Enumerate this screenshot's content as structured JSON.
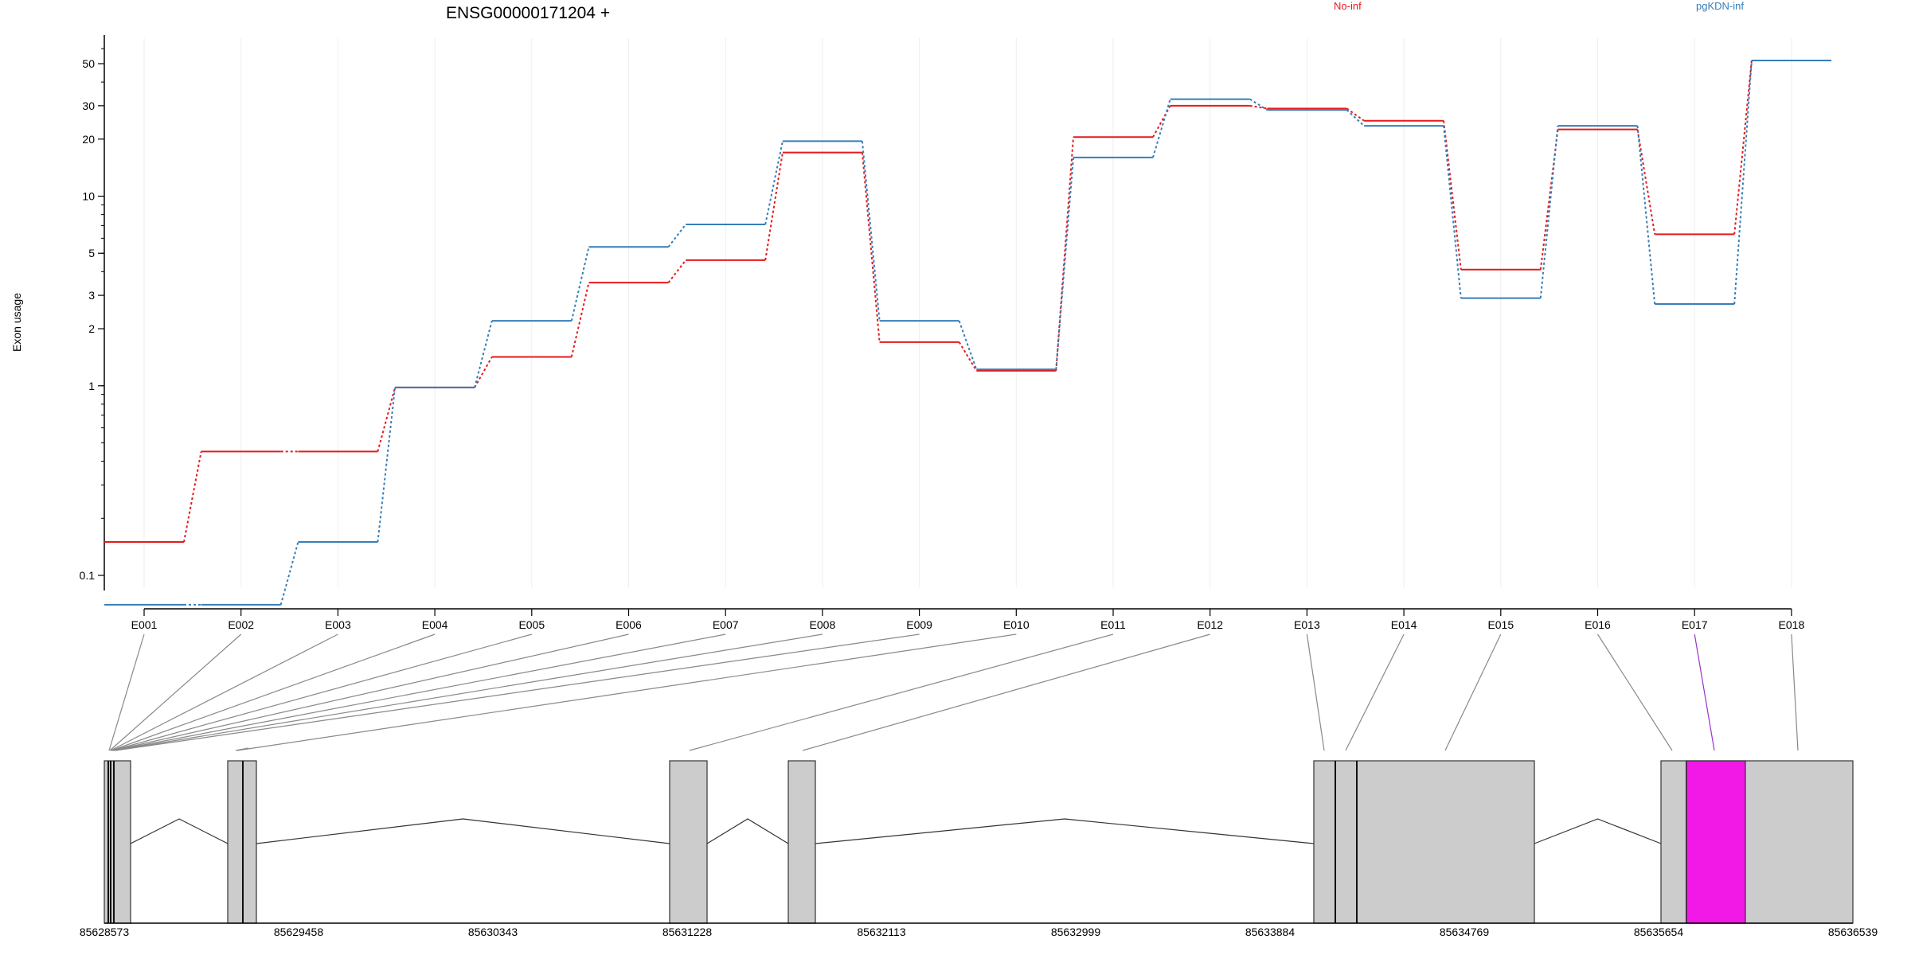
{
  "chart_data": {
    "type": "line",
    "title": "ENSG00000171204 +",
    "ylabel": "Exon usage",
    "y_scale": "log",
    "y_range": [
      0.07,
      60
    ],
    "yticks": [
      0.1,
      1,
      2,
      3,
      5,
      10,
      20,
      30,
      50
    ],
    "ytick_labels": [
      "0.1",
      "1",
      "2",
      "3",
      "5",
      "10",
      "20",
      "30",
      "50"
    ],
    "grid": true,
    "legend": "top-right",
    "categories": [
      "E001",
      "E002",
      "E003",
      "E004",
      "E005",
      "E006",
      "E007",
      "E008",
      "E009",
      "E010",
      "E011",
      "E012",
      "E013",
      "E014",
      "E015",
      "E016",
      "E017",
      "E018"
    ],
    "series": [
      {
        "name": "No-inf",
        "color": "#e41a1c",
        "values": [
          0.15,
          0.45,
          0.45,
          0.98,
          1.42,
          3.5,
          4.6,
          17.0,
          1.7,
          1.2,
          20.5,
          30.0,
          29.0,
          25.0,
          4.1,
          22.5,
          6.3,
          52.0
        ]
      },
      {
        "name": "pgKDN-inf",
        "color": "#377eb8",
        "values": [
          0.07,
          0.07,
          0.15,
          0.98,
          2.2,
          5.4,
          7.1,
          19.5,
          2.2,
          1.22,
          16.0,
          32.5,
          28.5,
          23.5,
          2.9,
          23.5,
          2.7,
          52.0
        ]
      }
    ],
    "gene_model": {
      "coordinates": [
        "85628573",
        "85629458",
        "85630343",
        "85631228",
        "85632113",
        "85632999",
        "85633884",
        "85634769",
        "85635654",
        "85636539"
      ],
      "highlight_exon": "E017",
      "highlight_color": "#f218e6",
      "exon_fill": "#cccccc"
    }
  }
}
